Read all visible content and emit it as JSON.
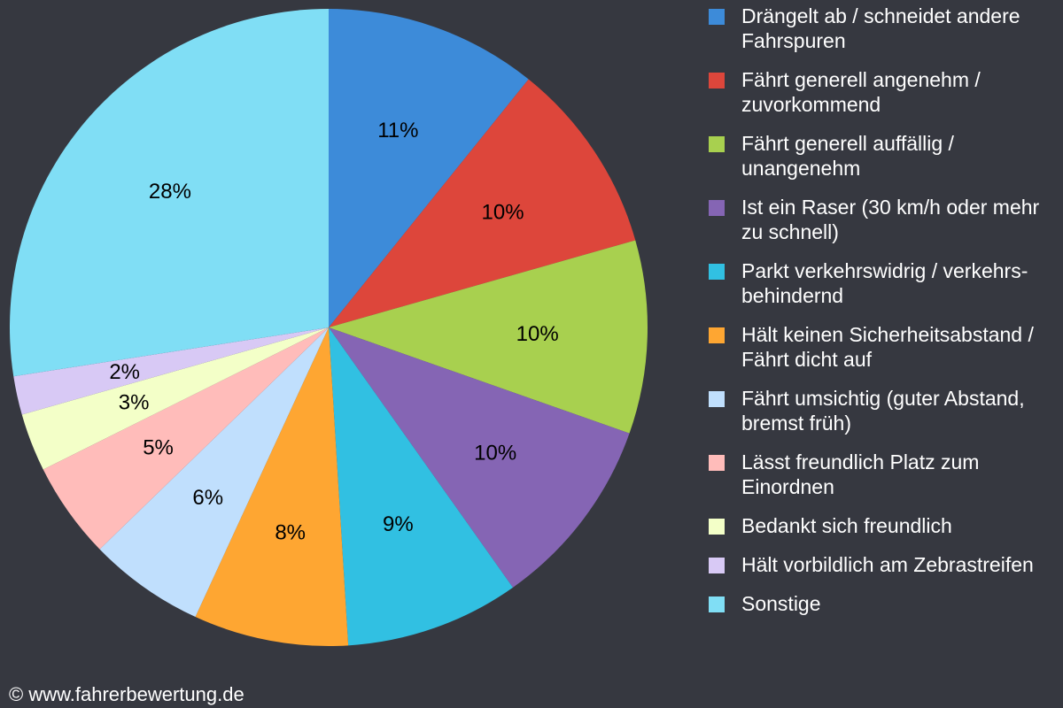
{
  "chart_data": {
    "type": "pie",
    "title": "",
    "legend_position": "right",
    "slices": [
      {
        "label": "Drängelt ab / schneidet andere Fahrspuren",
        "value": 11,
        "value_label": "11%",
        "color": "#3d8bd9"
      },
      {
        "label": "Fährt generell angenehm / zuvorkommend",
        "value": 10,
        "value_label": "10%",
        "color": "#dd463b"
      },
      {
        "label": "Fährt generell auffällig / unangenehm",
        "value": 10,
        "value_label": "10%",
        "color": "#a8d04f"
      },
      {
        "label": "Ist ein Raser (30 km/h oder mehr zu schnell)",
        "value": 10,
        "value_label": "10%",
        "color": "#8565b4"
      },
      {
        "label": "Parkt verkehrswidrig / verkehrs-behindernd",
        "value": 9,
        "value_label": "9%",
        "color": "#31c0e2"
      },
      {
        "label": "Hält keinen Sicherheitsabstand / Fährt dicht auf",
        "value": 8,
        "value_label": "8%",
        "color": "#fea632"
      },
      {
        "label": "Fährt umsichtig (guter Abstand, bremst früh)",
        "value": 6,
        "value_label": "6%",
        "color": "#c0dffd"
      },
      {
        "label": "Lässt freundlich Platz zum Einordnen",
        "value": 5,
        "value_label": "5%",
        "color": "#ffbcba"
      },
      {
        "label": "Bedankt sich freundlich",
        "value": 3,
        "value_label": "3%",
        "color": "#f3ffc8"
      },
      {
        "label": "Hält vorbildlich am Zebrastreifen",
        "value": 2,
        "value_label": "2%",
        "color": "#d8c9f5"
      },
      {
        "label": "Sonstige",
        "value": 28,
        "value_label": "28%",
        "color": "#80def5"
      }
    ]
  },
  "footer": {
    "copyright": "© www.fahrerbewertung.de"
  }
}
